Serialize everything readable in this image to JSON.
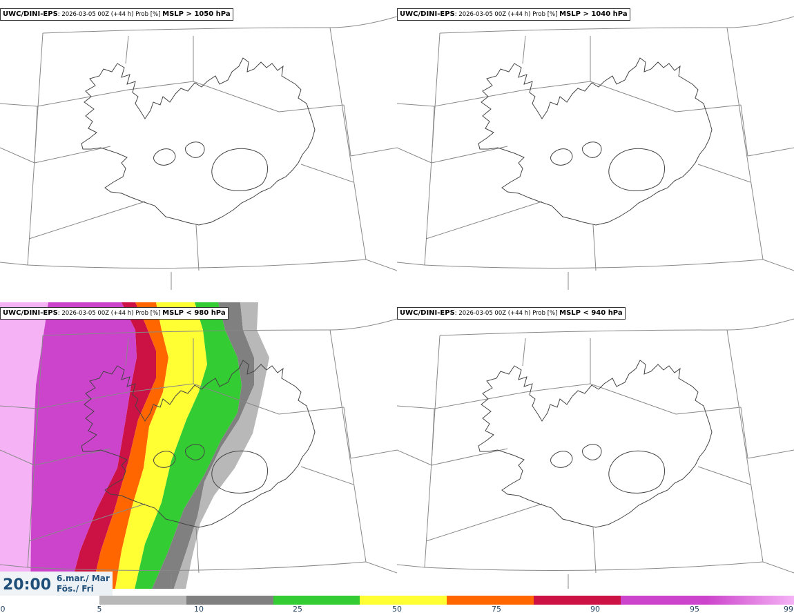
{
  "panels": [
    {
      "model": "UWC/DINI-EPS",
      "meta": ": 2026-03-05 00Z (+44 h) Prob [%] ",
      "field": "MSLP > 1050 hPa"
    },
    {
      "model": "UWC/DINI-EPS",
      "meta": ": 2026-03-05 00Z (+44 h) Prob [%] ",
      "field": "MSLP > 1040 hPa"
    },
    {
      "model": "UWC/DINI-EPS",
      "meta": ": 2026-03-05 00Z (+44 h) Prob [%] ",
      "field": "MSLP < 980 hPa"
    },
    {
      "model": "UWC/DINI-EPS",
      "meta": ": 2026-03-05 00Z (+44 h) Prob [%] ",
      "field": "MSLP < 940 hPa"
    }
  ],
  "valid_time": {
    "time": "20:00",
    "date_line1": "6.mar./ Mar",
    "date_line2": "Fös./ Fri"
  },
  "colorbar": {
    "labels": [
      "0",
      "5",
      "10",
      "25",
      "50",
      "75",
      "90",
      "95",
      "99"
    ],
    "colors": [
      "#b8b8b8",
      "#808080",
      "#33cc33",
      "#ffff33",
      "#ff6600",
      "#cc1144",
      "#cc44cc",
      "#f5b3f5"
    ]
  }
}
